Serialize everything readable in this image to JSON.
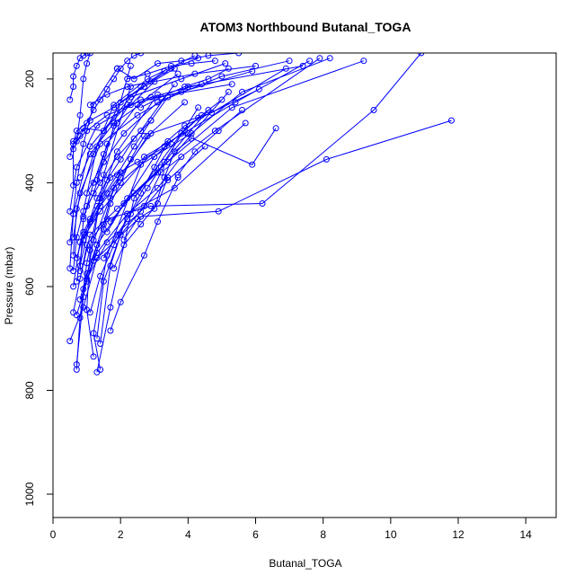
{
  "chart_data": {
    "type": "line",
    "title": "ATOM3 Northbound Butanal_TOGA",
    "xlabel": "Butanal_TOGA",
    "ylabel": "Pressure (mbar)",
    "xlim": [
      0,
      14.9
    ],
    "ylim": [
      1045,
      150
    ],
    "y_inverted": true,
    "x_ticks": [
      "0",
      "2",
      "4",
      "6",
      "8",
      "10",
      "12",
      "14"
    ],
    "y_ticks": [
      "200",
      "400",
      "600",
      "800",
      "1000"
    ],
    "grid": false,
    "legend": "none",
    "marker": "open-circle",
    "color": "#0000ff",
    "series": [
      {
        "x": [
          0.5,
          0.9,
          1.3,
          2.6,
          4.9,
          8.1,
          11.8
        ],
        "y": [
          705,
          640,
          545,
          465,
          455,
          355,
          280
        ]
      },
      {
        "x": [
          0.6,
          1.0,
          1.6,
          2.9,
          6.2,
          9.5,
          10.9
        ],
        "y": [
          650,
          520,
          470,
          445,
          440,
          260,
          150
        ]
      },
      {
        "x": [
          1.3,
          1.7,
          2.4,
          3.8,
          5.9,
          6.6
        ],
        "y": [
          765,
          640,
          430,
          305,
          365,
          295
        ]
      },
      {
        "x": [
          0.7,
          0.8,
          1.0,
          1.4,
          1.9,
          3.1
        ],
        "y": [
          760,
          660,
          555,
          430,
          340,
          230
        ]
      },
      {
        "x": [
          0.7,
          0.9,
          1.2,
          1.5,
          2.3
        ],
        "y": [
          750,
          620,
          510,
          385,
          215
        ]
      },
      {
        "x": [
          1.4,
          1.2,
          1.6,
          2.7,
          5.4,
          7.6
        ],
        "y": [
          760,
          690,
          540,
          350,
          245,
          165
        ]
      },
      {
        "x": [
          1.2,
          1.0,
          1.1,
          1.8,
          3.9,
          6.1
        ],
        "y": [
          735,
          645,
          530,
          410,
          290,
          220
        ]
      },
      {
        "x": [
          0.7,
          1.0,
          1.3,
          2.1,
          3.1,
          4.3
        ],
        "y": [
          655,
          590,
          520,
          440,
          380,
          255
        ]
      },
      {
        "x": [
          0.6,
          0.8,
          1.4,
          2.6,
          4.1,
          5.6,
          8.2
        ],
        "y": [
          600,
          515,
          455,
          365,
          305,
          225,
          160
        ]
      },
      {
        "x": [
          0.6,
          0.7,
          0.9,
          1.3,
          2.0,
          3.3
        ],
        "y": [
          570,
          505,
          455,
          330,
          245,
          185
        ]
      },
      {
        "x": [
          0.5,
          0.6,
          1.1,
          2.3,
          3.8,
          5.1
        ],
        "y": [
          565,
          460,
          330,
          235,
          200,
          170
        ]
      },
      {
        "x": [
          0.7,
          0.9,
          1.6,
          2.9,
          4.7,
          6.9
        ],
        "y": [
          545,
          500,
          420,
          305,
          265,
          180
        ]
      },
      {
        "x": [
          0.8,
          1.1,
          1.9,
          3.2,
          5.3,
          9.2
        ],
        "y": [
          585,
          500,
          450,
          370,
          255,
          165
        ]
      },
      {
        "x": [
          0.6,
          0.7,
          1.2,
          1.8,
          2.8,
          4.2
        ],
        "y": [
          540,
          450,
          345,
          250,
          200,
          155
        ]
      },
      {
        "x": [
          0.6,
          0.8,
          1.4,
          2.5,
          4.0,
          7.4
        ],
        "y": [
          505,
          420,
          325,
          270,
          215,
          175
        ]
      },
      {
        "x": [
          0.5,
          0.7,
          0.9,
          1.2,
          1.9
        ],
        "y": [
          515,
          400,
          325,
          250,
          180
        ]
      },
      {
        "x": [
          0.9,
          1.3,
          2.2,
          3.6,
          5.7
        ],
        "y": [
          605,
          535,
          460,
          410,
          285
        ]
      },
      {
        "x": [
          1.0,
          1.6,
          2.6,
          3.4,
          4.5
        ],
        "y": [
          585,
          515,
          455,
          395,
          330
        ]
      },
      {
        "x": [
          0.8,
          1.1,
          1.7,
          2.5,
          3.5
        ],
        "y": [
          560,
          475,
          390,
          360,
          325
        ]
      },
      {
        "x": [
          0.6,
          0.6,
          1.0,
          1.6,
          2.3,
          3.0,
          4.2,
          6.0
        ],
        "y": [
          405,
          325,
          300,
          270,
          250,
          205,
          190,
          175
        ]
      },
      {
        "x": [
          0.5,
          0.7,
          1.3,
          2.6,
          5.3
        ],
        "y": [
          455,
          370,
          290,
          240,
          210
        ]
      },
      {
        "x": [
          0.5,
          0.7,
          1.1,
          1.8,
          2.7,
          3.6
        ],
        "y": [
          350,
          300,
          280,
          255,
          215,
          180
        ]
      },
      {
        "x": [
          0.6,
          0.9,
          1.5,
          2.2,
          3.8,
          5.9
        ],
        "y": [
          320,
          295,
          300,
          250,
          225,
          185
        ]
      },
      {
        "x": [
          0.7,
          0.8,
          0.9,
          1.0,
          1.1
        ],
        "y": [
          320,
          270,
          200,
          170,
          150
        ]
      },
      {
        "x": [
          0.8,
          1.1,
          1.8,
          2.9,
          4.4
        ],
        "y": [
          390,
          345,
          285,
          235,
          210
        ]
      },
      {
        "x": [
          1.0,
          1.5,
          2.1,
          3.1,
          5.0,
          7.0
        ],
        "y": [
          420,
          360,
          305,
          245,
          195,
          165
        ]
      },
      {
        "x": [
          1.3,
          1.6,
          2.5,
          3.7
        ],
        "y": [
          395,
          325,
          250,
          190
        ]
      },
      {
        "x": [
          1.0,
          1.4,
          1.9,
          2.6,
          3.6
        ],
        "y": [
          445,
          400,
          350,
          300,
          210
        ]
      },
      {
        "x": [
          0.9,
          1.2,
          1.5,
          1.8,
          2.3
        ],
        "y": [
          465,
          420,
          360,
          290,
          175
        ]
      },
      {
        "x": [
          1.6,
          2.2,
          3.0,
          4.3
        ],
        "y": [
          495,
          430,
          350,
          275
        ]
      },
      {
        "x": [
          1.7,
          2.4,
          3.4,
          5.2
        ],
        "y": [
          475,
          420,
          360,
          225
        ]
      },
      {
        "x": [
          0.8,
          0.9,
          1.2,
          1.5,
          1.9,
          2.6
        ],
        "y": [
          570,
          470,
          400,
          345,
          285,
          215
        ]
      },
      {
        "x": [
          0.7,
          0.9,
          1.4,
          2.0,
          2.8,
          3.9
        ],
        "y": [
          590,
          510,
          445,
          390,
          310,
          245
        ]
      },
      {
        "x": [
          1.3,
          1.5,
          2.0,
          2.7,
          3.2,
          4.8,
          7.9
        ],
        "y": [
          700,
          590,
          500,
          445,
          380,
          300,
          160
        ]
      },
      {
        "x": [
          1.4,
          1.7,
          2.2,
          3.1,
          3.8
        ],
        "y": [
          710,
          560,
          460,
          410,
          350
        ]
      },
      {
        "x": [
          1.7,
          2.0,
          2.7,
          3.1,
          3.7
        ],
        "y": [
          685,
          630,
          540,
          475,
          390
        ]
      },
      {
        "x": [
          0.9,
          1.3,
          1.9,
          2.4,
          2.9,
          3.4
        ],
        "y": [
          495,
          445,
          385,
          330,
          280,
          235
        ]
      },
      {
        "x": [
          0.6,
          0.8,
          1.0,
          1.2,
          1.4,
          1.6,
          1.8,
          2.0,
          2.2,
          2.4,
          2.6
        ],
        "y": [
          335,
          310,
          285,
          260,
          240,
          220,
          200,
          180,
          165,
          155,
          150
        ]
      },
      {
        "x": [
          0.5,
          0.6,
          0.6,
          0.7,
          0.8,
          0.9,
          1.0
        ],
        "y": [
          240,
          215,
          195,
          175,
          160,
          155,
          150
        ]
      },
      {
        "x": [
          1.9,
          2.4,
          3.1,
          3.8,
          4.6,
          5.5
        ],
        "y": [
          180,
          200,
          170,
          165,
          155,
          150
        ]
      },
      {
        "x": [
          1.1,
          1.6,
          2.2,
          2.9,
          3.5,
          4.3
        ],
        "y": [
          250,
          230,
          215,
          205,
          180,
          160
        ]
      },
      {
        "x": [
          2.1,
          2.5,
          3.0,
          3.3,
          3.6,
          4.1
        ],
        "y": [
          510,
          470,
          450,
          390,
          340,
          315
        ]
      },
      {
        "x": [
          1.5,
          1.9,
          2.3,
          2.8,
          3.3,
          4.0,
          4.6
        ],
        "y": [
          545,
          500,
          460,
          410,
          360,
          305,
          260
        ]
      },
      {
        "x": [
          1.1,
          1.4,
          1.8,
          2.2,
          2.6,
          3.0,
          3.4
        ],
        "y": [
          650,
          580,
          520,
          470,
          420,
          370,
          320
        ]
      },
      {
        "x": [
          0.8,
          1.0,
          1.3,
          1.5,
          1.7,
          2.0
        ],
        "y": [
          625,
          575,
          520,
          480,
          430,
          380
        ]
      },
      {
        "x": [
          1.8,
          2.1,
          2.6,
          3.1,
          3.4
        ],
        "y": [
          565,
          520,
          480,
          440,
          390
        ]
      },
      {
        "x": [
          1.2,
          1.5,
          1.7,
          2.0,
          2.3,
          2.7
        ],
        "y": [
          550,
          490,
          440,
          400,
          355,
          310
        ]
      },
      {
        "x": [
          0.9,
          1.1,
          1.3,
          1.6,
          2.0,
          2.4,
          2.9
        ],
        "y": [
          510,
          470,
          430,
          395,
          355,
          315,
          280
        ]
      },
      {
        "x": [
          2.2,
          2.8,
          3.5,
          4.1,
          4.8
        ],
        "y": [
          200,
          190,
          175,
          170,
          165
        ]
      },
      {
        "x": [
          2.6,
          3.2,
          3.9,
          4.6,
          5.2
        ],
        "y": [
          255,
          235,
          215,
          200,
          180
        ]
      },
      {
        "x": [
          3.3,
          3.9,
          4.4,
          5.0
        ],
        "y": [
          330,
          300,
          270,
          240
        ]
      },
      {
        "x": [
          3.7,
          4.2,
          4.9,
          5.6
        ],
        "y": [
          385,
          340,
          300,
          260
        ]
      }
    ]
  }
}
